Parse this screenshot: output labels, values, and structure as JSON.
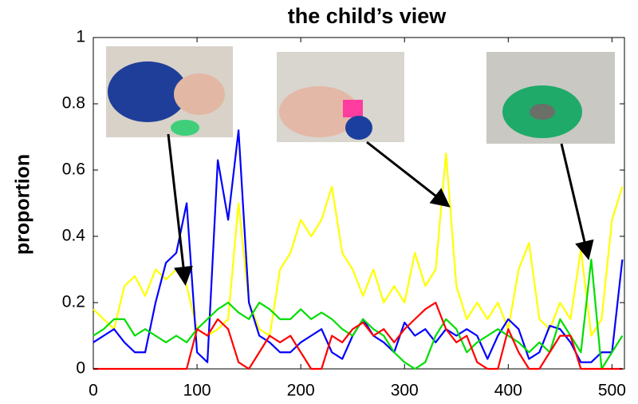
{
  "chart_data": {
    "type": "line",
    "title": "the child’s view",
    "y_label": "proportion",
    "x": [
      0,
      10,
      20,
      30,
      40,
      50,
      60,
      70,
      80,
      90,
      100,
      110,
      120,
      130,
      140,
      150,
      160,
      170,
      180,
      190,
      200,
      210,
      220,
      230,
      240,
      250,
      260,
      270,
      280,
      290,
      300,
      310,
      320,
      330,
      340,
      350,
      360,
      370,
      380,
      390,
      400,
      410,
      420,
      430,
      440,
      450,
      460,
      470,
      480,
      490,
      500,
      510
    ],
    "xlim": [
      0,
      512
    ],
    "xticks": [
      0,
      100,
      200,
      300,
      400,
      500
    ],
    "ylim": [
      0,
      1
    ],
    "yticks": [
      0,
      0.2,
      0.4,
      0.6,
      0.8,
      1
    ],
    "series": [
      {
        "color": "#ffff00",
        "values": [
          0.18,
          0.15,
          0.12,
          0.25,
          0.28,
          0.22,
          0.3,
          0.27,
          0.3,
          0.25,
          0.12,
          0.1,
          0.12,
          0.15,
          0.5,
          0.2,
          0.12,
          0.1,
          0.3,
          0.35,
          0.45,
          0.4,
          0.45,
          0.55,
          0.35,
          0.3,
          0.22,
          0.3,
          0.2,
          0.25,
          0.2,
          0.35,
          0.25,
          0.3,
          0.65,
          0.25,
          0.15,
          0.2,
          0.15,
          0.2,
          0.12,
          0.3,
          0.38,
          0.15,
          0.12,
          0.2,
          0.15,
          0.36,
          0.1,
          0.15,
          0.45,
          0.55
        ]
      },
      {
        "color": "#0000ff",
        "values": [
          0.08,
          0.1,
          0.12,
          0.08,
          0.05,
          0.05,
          0.2,
          0.32,
          0.35,
          0.5,
          0.05,
          0.02,
          0.63,
          0.45,
          0.72,
          0.2,
          0.1,
          0.08,
          0.05,
          0.05,
          0.08,
          0.1,
          0.12,
          0.05,
          0.03,
          0.1,
          0.15,
          0.1,
          0.08,
          0.05,
          0.14,
          0.1,
          0.12,
          0.08,
          0.12,
          0.1,
          0.12,
          0.1,
          0.03,
          0.1,
          0.15,
          0.12,
          0.03,
          0.05,
          0.13,
          0.12,
          0.08,
          0.02,
          0.02,
          0.05,
          0.05,
          0.33
        ]
      },
      {
        "color": "#00dd00",
        "values": [
          0.1,
          0.12,
          0.15,
          0.15,
          0.1,
          0.12,
          0.1,
          0.08,
          0.1,
          0.08,
          0.12,
          0.15,
          0.18,
          0.2,
          0.17,
          0.15,
          0.2,
          0.18,
          0.15,
          0.15,
          0.18,
          0.15,
          0.17,
          0.15,
          0.12,
          0.1,
          0.15,
          0.12,
          0.1,
          0.05,
          0.02,
          0,
          0.02,
          0.1,
          0.15,
          0.12,
          0.05,
          0.08,
          0.1,
          0.12,
          0.1,
          0.08,
          0.05,
          0.08,
          0.05,
          0.15,
          0.1,
          0.05,
          0.33,
          0,
          0.05,
          0.1
        ]
      },
      {
        "color": "#ff0000",
        "values": [
          0,
          0,
          0,
          0,
          0,
          0,
          0,
          0,
          0,
          0,
          0.12,
          0.1,
          0.15,
          0.12,
          0.02,
          0,
          0.05,
          0.1,
          0.08,
          0.1,
          0.05,
          0,
          0,
          0.1,
          0.08,
          0.12,
          0.14,
          0.1,
          0.12,
          0.08,
          0.12,
          0.15,
          0.18,
          0.2,
          0.12,
          0.08,
          0.1,
          0.02,
          0,
          0,
          0.12,
          0.05,
          0,
          0,
          0.05,
          0.1,
          0.1,
          0,
          0,
          0,
          0,
          0
        ]
      }
    ]
  }
}
